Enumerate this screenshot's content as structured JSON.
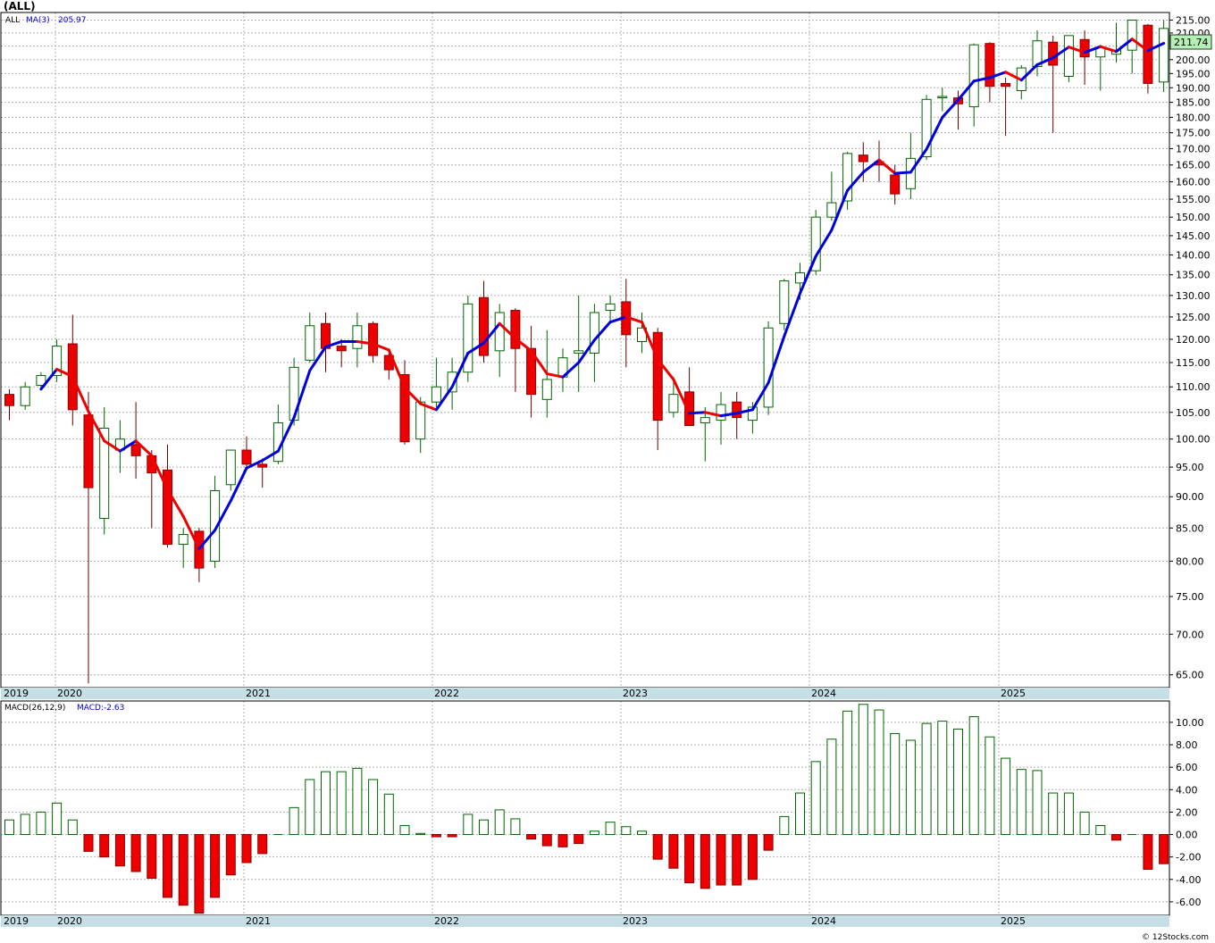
{
  "header": {
    "symbol_title": "(ALL)",
    "price_legend_symbol": "ALL",
    "ma_legend_label": "MA(3)",
    "ma_legend_value": "205.97",
    "last_price_badge": "211.74",
    "macd_legend_label": "MACD(26,12,9)",
    "macd_legend_value": "MACD:-2.63",
    "footer_copyright": "© 12Stocks.com"
  },
  "colors": {
    "up_candle_border": "#006400",
    "down_candle_fill": "#ee0000",
    "ma_rising": "#0000dd",
    "ma_falling": "#ee0000",
    "axis_bar": "#c6dfe6",
    "badge_bg": "#b4f0b4"
  },
  "chart_data": [
    {
      "type": "candlestick",
      "title": "(ALL)",
      "period": "monthly",
      "x_tick_labels": [
        "2019",
        "2020",
        "2021",
        "2022",
        "2023",
        "2024",
        "2025"
      ],
      "y_tick_labels": [
        "215.00",
        "210.00",
        "205.00",
        "200.00",
        "195.00",
        "190.00",
        "185.00",
        "180.00",
        "175.00",
        "170.00",
        "165.00",
        "160.00",
        "155.00",
        "150.00",
        "145.00",
        "140.00",
        "135.00",
        "130.00",
        "125.00",
        "120.00",
        "115.00",
        "110.00",
        "105.00",
        "100.00",
        "95.00",
        "90.00",
        "85.00",
        "80.00",
        "75.00",
        "70.00",
        "65.00"
      ],
      "y_scale": "log",
      "ylim": [
        63.5,
        218
      ],
      "grid": true,
      "overlay": {
        "name": "MA(3)",
        "last_value": 205.97
      },
      "candles": [
        {
          "x": 0,
          "o": 108.5,
          "h": 109.5,
          "l": 103.5,
          "c": 106.3
        },
        {
          "x": 1,
          "o": 106.3,
          "h": 111.0,
          "l": 105.5,
          "c": 110.0
        },
        {
          "x": 2,
          "o": 110.3,
          "h": 113.0,
          "l": 109.5,
          "c": 112.3
        },
        {
          "x": 3,
          "o": 112.3,
          "h": 120.0,
          "l": 111.0,
          "c": 118.5
        },
        {
          "x": 4,
          "o": 119.0,
          "h": 125.5,
          "l": 102.5,
          "c": 105.5
        },
        {
          "x": 5,
          "o": 104.5,
          "h": 109.0,
          "l": 64.0,
          "c": 91.5
        },
        {
          "x": 6,
          "o": 86.5,
          "h": 106.0,
          "l": 84.0,
          "c": 102.0
        },
        {
          "x": 7,
          "o": 98.0,
          "h": 103.5,
          "l": 94.0,
          "c": 100.0
        },
        {
          "x": 8,
          "o": 99.0,
          "h": 107.0,
          "l": 93.0,
          "c": 97.0
        },
        {
          "x": 9,
          "o": 97.0,
          "h": 98.0,
          "l": 85.0,
          "c": 94.0
        },
        {
          "x": 10,
          "o": 94.5,
          "h": 99.0,
          "l": 82.0,
          "c": 82.5
        },
        {
          "x": 11,
          "o": 82.5,
          "h": 85.0,
          "l": 79.0,
          "c": 84.0
        },
        {
          "x": 12,
          "o": 84.5,
          "h": 85.0,
          "l": 77.0,
          "c": 79.0
        },
        {
          "x": 13,
          "o": 80.0,
          "h": 93.5,
          "l": 79.0,
          "c": 91.0
        },
        {
          "x": 14,
          "o": 92.0,
          "h": 98.0,
          "l": 91.0,
          "c": 98.0
        },
        {
          "x": 15,
          "o": 98.0,
          "h": 100.5,
          "l": 94.5,
          "c": 95.5
        },
        {
          "x": 16,
          "o": 95.5,
          "h": 96.5,
          "l": 91.5,
          "c": 95.0
        },
        {
          "x": 17,
          "o": 96.0,
          "h": 106.5,
          "l": 95.5,
          "c": 103.0
        },
        {
          "x": 18,
          "o": 103.5,
          "h": 116.0,
          "l": 102.5,
          "c": 114.0
        },
        {
          "x": 19,
          "o": 115.5,
          "h": 126.0,
          "l": 115.0,
          "c": 123.0
        },
        {
          "x": 20,
          "o": 123.5,
          "h": 126.0,
          "l": 113.0,
          "c": 118.0
        },
        {
          "x": 21,
          "o": 118.5,
          "h": 120.0,
          "l": 114.0,
          "c": 117.5
        },
        {
          "x": 22,
          "o": 118.0,
          "h": 126.0,
          "l": 114.0,
          "c": 123.0
        },
        {
          "x": 23,
          "o": 123.5,
          "h": 124.0,
          "l": 115.0,
          "c": 116.5
        },
        {
          "x": 24,
          "o": 116.5,
          "h": 117.0,
          "l": 111.5,
          "c": 113.5
        },
        {
          "x": 25,
          "o": 112.5,
          "h": 115.5,
          "l": 99.0,
          "c": 99.5
        },
        {
          "x": 26,
          "o": 100.0,
          "h": 108.0,
          "l": 97.5,
          "c": 107.0
        },
        {
          "x": 27,
          "o": 107.0,
          "h": 116.0,
          "l": 106.0,
          "c": 110.0
        },
        {
          "x": 28,
          "o": 109.0,
          "h": 116.0,
          "l": 105.5,
          "c": 113.0
        },
        {
          "x": 29,
          "o": 113.0,
          "h": 130.0,
          "l": 111.0,
          "c": 128.0
        },
        {
          "x": 30,
          "o": 129.5,
          "h": 133.5,
          "l": 115.0,
          "c": 116.5
        },
        {
          "x": 31,
          "o": 117.5,
          "h": 128.0,
          "l": 112.0,
          "c": 126.0
        },
        {
          "x": 32,
          "o": 126.5,
          "h": 127.0,
          "l": 109.0,
          "c": 118.0
        },
        {
          "x": 33,
          "o": 118.0,
          "h": 123.0,
          "l": 104.0,
          "c": 108.5
        },
        {
          "x": 34,
          "o": 107.5,
          "h": 122.0,
          "l": 104.0,
          "c": 111.5
        },
        {
          "x": 35,
          "o": 112.0,
          "h": 118.0,
          "l": 109.0,
          "c": 116.0
        },
        {
          "x": 36,
          "o": 117.0,
          "h": 130.0,
          "l": 109.0,
          "c": 117.5
        },
        {
          "x": 37,
          "o": 117.0,
          "h": 128.0,
          "l": 111.0,
          "c": 126.0
        },
        {
          "x": 38,
          "o": 126.5,
          "h": 130.0,
          "l": 124.0,
          "c": 128.0
        },
        {
          "x": 39,
          "o": 128.5,
          "h": 134.0,
          "l": 114.0,
          "c": 121.0
        },
        {
          "x": 40,
          "o": 119.5,
          "h": 126.0,
          "l": 117.0,
          "c": 122.5
        },
        {
          "x": 41,
          "o": 121.5,
          "h": 122.5,
          "l": 98.0,
          "c": 103.5
        },
        {
          "x": 42,
          "o": 105.0,
          "h": 112.0,
          "l": 104.0,
          "c": 108.5
        },
        {
          "x": 43,
          "o": 109.0,
          "h": 114.0,
          "l": 102.5,
          "c": 102.5
        },
        {
          "x": 44,
          "o": 103.0,
          "h": 106.0,
          "l": 96.0,
          "c": 104.0
        },
        {
          "x": 45,
          "o": 103.5,
          "h": 109.0,
          "l": 99.0,
          "c": 106.5
        },
        {
          "x": 46,
          "o": 107.0,
          "h": 109.0,
          "l": 100.0,
          "c": 104.0
        },
        {
          "x": 47,
          "o": 103.5,
          "h": 107.0,
          "l": 101.0,
          "c": 106.0
        },
        {
          "x": 48,
          "o": 106.0,
          "h": 124.0,
          "l": 104.5,
          "c": 122.5
        },
        {
          "x": 49,
          "o": 123.5,
          "h": 134.0,
          "l": 122.0,
          "c": 133.5
        },
        {
          "x": 50,
          "o": 133.0,
          "h": 138.0,
          "l": 129.0,
          "c": 135.5
        },
        {
          "x": 51,
          "o": 136.0,
          "h": 152.0,
          "l": 135.0,
          "c": 150.0
        },
        {
          "x": 52,
          "o": 150.0,
          "h": 163.0,
          "l": 149.0,
          "c": 154.0
        },
        {
          "x": 53,
          "o": 154.5,
          "h": 169.0,
          "l": 152.0,
          "c": 168.5
        },
        {
          "x": 54,
          "o": 168.0,
          "h": 172.0,
          "l": 160.0,
          "c": 166.0
        },
        {
          "x": 55,
          "o": 166.0,
          "h": 172.5,
          "l": 160.0,
          "c": 165.0
        },
        {
          "x": 56,
          "o": 162.0,
          "h": 165.0,
          "l": 153.5,
          "c": 156.5
        },
        {
          "x": 57,
          "o": 158.0,
          "h": 175.0,
          "l": 155.0,
          "c": 167.0
        },
        {
          "x": 58,
          "o": 167.5,
          "h": 187.5,
          "l": 166.5,
          "c": 186.0
        },
        {
          "x": 59,
          "o": 187.0,
          "h": 190.0,
          "l": 182.0,
          "c": 187.0
        },
        {
          "x": 60,
          "o": 186.5,
          "h": 189.0,
          "l": 176.0,
          "c": 184.5
        },
        {
          "x": 61,
          "o": 183.5,
          "h": 206.0,
          "l": 177.0,
          "c": 205.5
        },
        {
          "x": 62,
          "o": 206.0,
          "h": 206.5,
          "l": 185.0,
          "c": 190.5
        },
        {
          "x": 63,
          "o": 191.5,
          "h": 193.5,
          "l": 174.0,
          "c": 190.5
        },
        {
          "x": 64,
          "o": 189.0,
          "h": 198.0,
          "l": 186.0,
          "c": 197.0
        },
        {
          "x": 65,
          "o": 197.5,
          "h": 211.0,
          "l": 194.0,
          "c": 207.0
        },
        {
          "x": 66,
          "o": 206.5,
          "h": 209.0,
          "l": 175.0,
          "c": 198.0
        },
        {
          "x": 67,
          "o": 194.0,
          "h": 209.0,
          "l": 192.0,
          "c": 209.0
        },
        {
          "x": 68,
          "o": 207.5,
          "h": 211.0,
          "l": 191.0,
          "c": 201.0
        },
        {
          "x": 69,
          "o": 201.0,
          "h": 205.5,
          "l": 189.0,
          "c": 204.5
        },
        {
          "x": 70,
          "o": 202.0,
          "h": 214.0,
          "l": 199.0,
          "c": 203.5
        },
        {
          "x": 71,
          "o": 203.5,
          "h": 215.0,
          "l": 195.0,
          "c": 215.0
        },
        {
          "x": 72,
          "o": 213.0,
          "h": 213.5,
          "l": 188.0,
          "c": 191.5
        },
        {
          "x": 73,
          "o": 192.0,
          "h": 215.0,
          "l": 188.5,
          "c": 211.74
        }
      ]
    },
    {
      "type": "bar",
      "title": "MACD(26,12,9)",
      "series": [
        {
          "name": "MACD",
          "last_value": -2.63
        }
      ],
      "y_tick_labels": [
        "10.00",
        "8.00",
        "6.00",
        "4.00",
        "2.00",
        "0.00",
        "-2.00",
        "-4.00",
        "-6.00"
      ],
      "ylim": [
        -7.2,
        11.9
      ],
      "values": [
        1.3,
        1.8,
        2.0,
        2.8,
        1.3,
        -1.5,
        -2.0,
        -2.8,
        -3.3,
        -3.9,
        -5.6,
        -6.3,
        -7.0,
        -5.6,
        -3.6,
        -2.5,
        -1.7,
        0.0,
        2.4,
        4.9,
        5.6,
        5.6,
        5.9,
        4.9,
        3.6,
        0.8,
        0.1,
        -0.2,
        -0.2,
        1.8,
        1.3,
        2.2,
        1.4,
        -0.4,
        -1.0,
        -1.1,
        -0.8,
        0.3,
        1.1,
        0.7,
        0.3,
        -2.2,
        -3.0,
        -4.3,
        -4.8,
        -4.5,
        -4.5,
        -4.0,
        -1.4,
        1.6,
        3.7,
        6.5,
        8.5,
        11.0,
        11.6,
        11.1,
        9.0,
        8.4,
        9.9,
        10.1,
        9.4,
        10.5,
        8.7,
        6.8,
        5.8,
        5.7,
        3.7,
        3.7,
        2.0,
        0.8,
        -0.5,
        0.0,
        -3.1,
        -2.6
      ]
    }
  ]
}
